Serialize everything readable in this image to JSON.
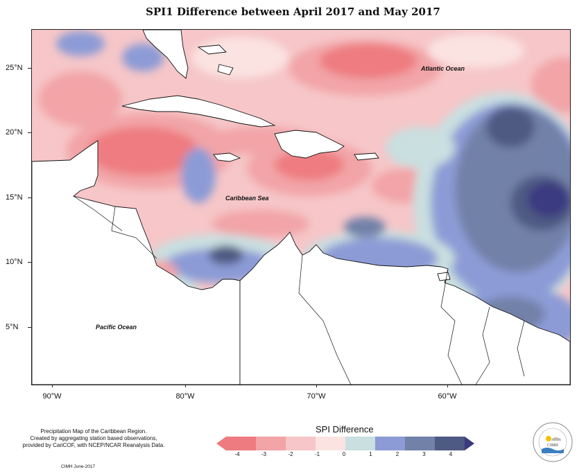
{
  "title": "SPI1 Difference between April 2017 and May 2017",
  "lat_labels": [
    "25°N",
    "20°N",
    "15°N",
    "10°N",
    "5°N"
  ],
  "lon_labels": [
    "90°W",
    "80°W",
    "70°W",
    "60°W"
  ],
  "ocean_labels": {
    "atlantic": "Atlantic Ocean",
    "caribbean": "Caribbean Sea",
    "pacific": "Pacific Ocean"
  },
  "credits": {
    "line1": "Precipitation Map of the Caribbean Region.",
    "line2": "Created by aggregating station based observations,",
    "line3": "provided by CariCOF, with NCEP/NCAR Reanalysis Data."
  },
  "footer": "CIMH June-2017",
  "legend": {
    "title": "SPI Difference",
    "ticks": [
      "-4",
      "-3",
      "-2",
      "-1",
      "0",
      "1",
      "2",
      "3",
      "4"
    ],
    "colors": [
      "#ee7b80",
      "#f2a4a7",
      "#f6c6c8",
      "#fbe3e2",
      "#c9dfe0",
      "#8c9bd6",
      "#7281a8",
      "#4f5a83",
      "#3a3a80"
    ]
  },
  "logo_text": "CIMH",
  "colors": {
    "land": "#ffffff",
    "coast": "#111111"
  }
}
